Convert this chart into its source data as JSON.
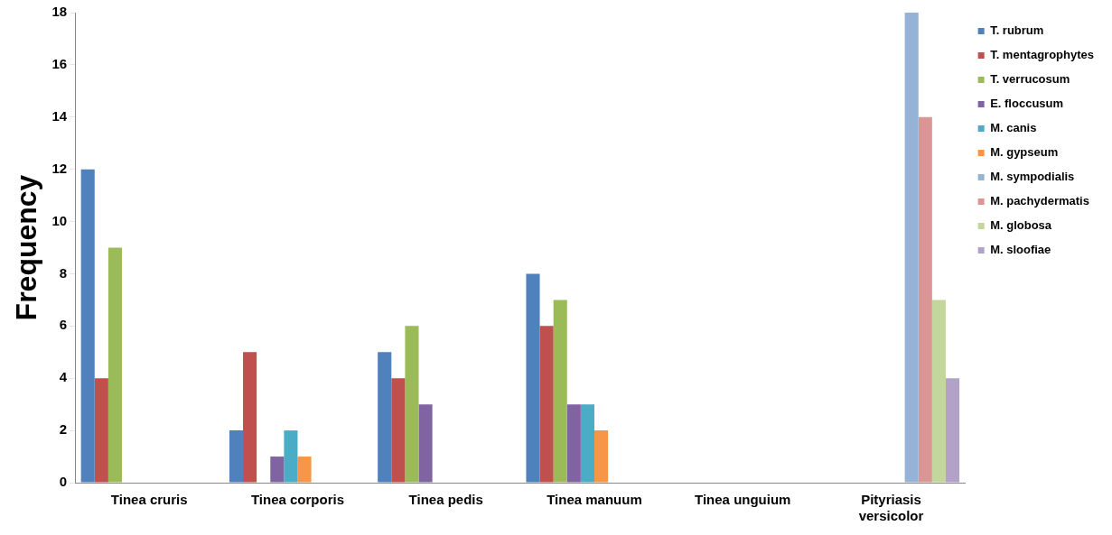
{
  "chart_data": {
    "type": "bar",
    "ylabel": "Frequency",
    "categories": [
      "Tinea cruris",
      "Tinea corporis",
      "Tinea pedis",
      "Tinea manuum",
      "Tinea unguium",
      "Pityriasis versicolor"
    ],
    "series": [
      {
        "name": "T. rubrum",
        "color": "#4f81bd",
        "values": [
          12,
          2,
          5,
          8,
          0,
          0
        ]
      },
      {
        "name": "T. mentagrophytes",
        "color": "#c0504d",
        "values": [
          4,
          5,
          4,
          6,
          0,
          0
        ]
      },
      {
        "name": "T. verrucosum",
        "color": "#9bbb59",
        "values": [
          9,
          0,
          6,
          7,
          0,
          0
        ]
      },
      {
        "name": "E. floccusum",
        "color": "#8064a2",
        "values": [
          0,
          1,
          3,
          3,
          0,
          0
        ]
      },
      {
        "name": "M. canis",
        "color": "#4bacc6",
        "values": [
          0,
          2,
          0,
          3,
          0,
          0
        ]
      },
      {
        "name": "M. gypseum",
        "color": "#f79646",
        "values": [
          0,
          1,
          0,
          2,
          0,
          0
        ]
      },
      {
        "name": "M. sympodialis",
        "color": "#95b3d7",
        "values": [
          0,
          0,
          0,
          0,
          0,
          18
        ]
      },
      {
        "name": "M. pachydermatis",
        "color": "#d99694",
        "values": [
          0,
          0,
          0,
          0,
          0,
          14
        ]
      },
      {
        "name": "M. globosa",
        "color": "#c3d69b",
        "values": [
          0,
          0,
          0,
          0,
          0,
          7
        ]
      },
      {
        "name": "M. sloofiae",
        "color": "#b3a2c7",
        "values": [
          0,
          0,
          0,
          0,
          0,
          4
        ]
      }
    ],
    "ylim": [
      0,
      18
    ],
    "yticks": [
      0,
      2,
      4,
      6,
      8,
      10,
      12,
      14,
      16,
      18
    ],
    "grid": false,
    "legend": "right"
  }
}
